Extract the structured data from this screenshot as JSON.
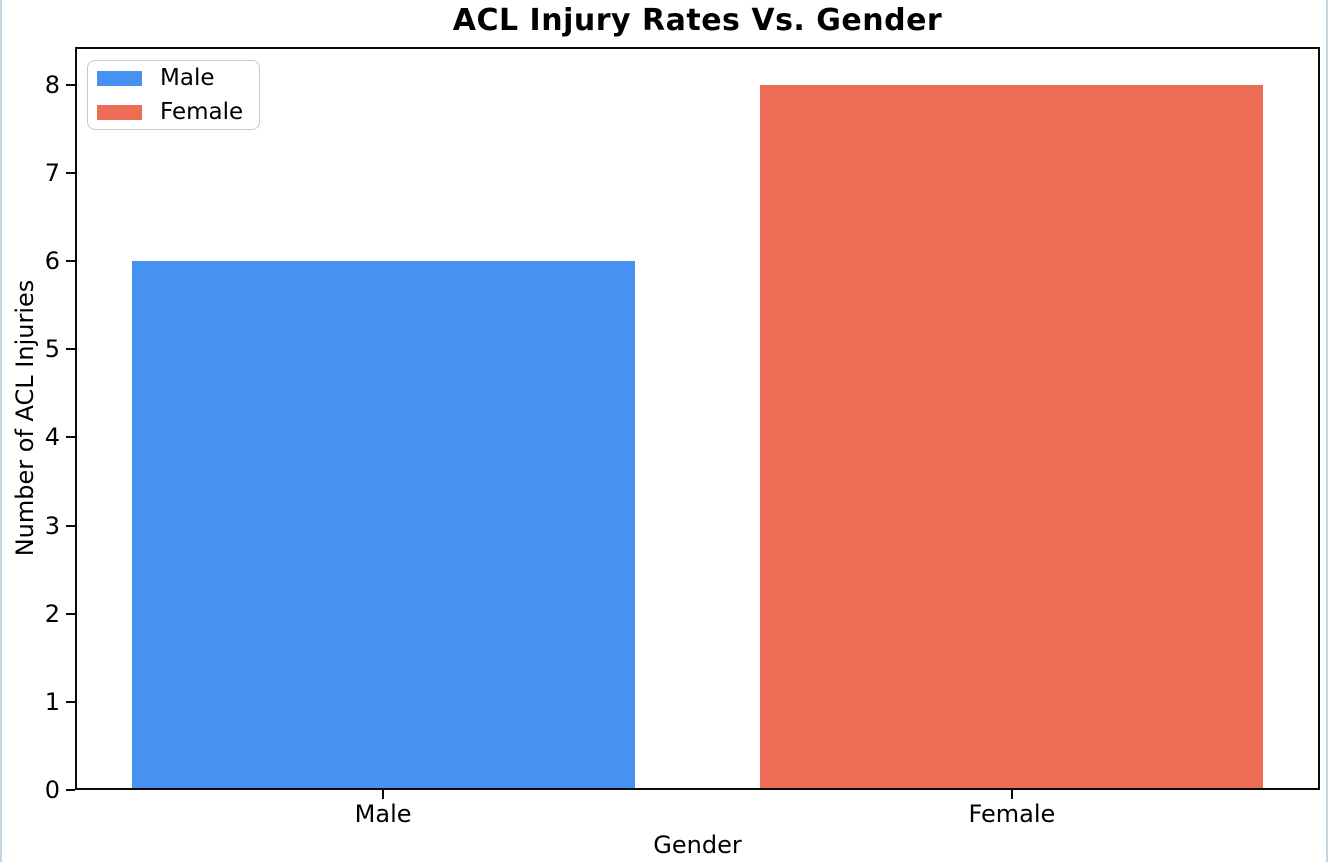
{
  "figure": {
    "background": "#ffffff",
    "border_color": "#c3d6e4"
  },
  "chart_data": {
    "type": "bar",
    "title": "ACL Injury Rates Vs. Gender",
    "xlabel": "Gender",
    "ylabel": "Number of ACL Injuries",
    "categories": [
      "Male",
      "Female"
    ],
    "values": [
      6,
      8
    ],
    "bar_colors": [
      "#4791F3",
      "#ED6C55"
    ],
    "x_positions": [
      0,
      1
    ],
    "bar_width": 0.8,
    "xlim": [
      -0.49,
      1.49
    ],
    "ylim": [
      0,
      8.43
    ],
    "yticks": [
      0,
      1,
      2,
      3,
      4,
      5,
      6,
      7,
      8
    ],
    "grid": false,
    "axis_color": "#0a0a0a",
    "legend": {
      "position": "upper-left",
      "entries": [
        {
          "label": "Male",
          "color": "#4791F3"
        },
        {
          "label": "Female",
          "color": "#ED6C55"
        }
      ]
    }
  }
}
